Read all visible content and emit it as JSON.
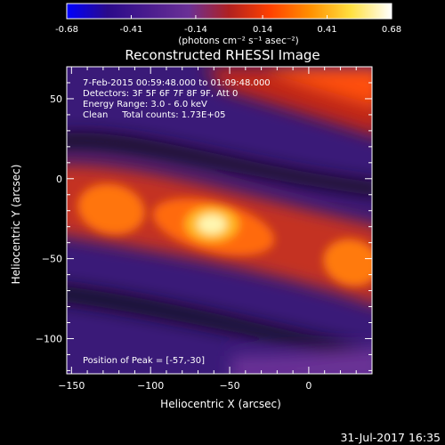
{
  "chart_data": {
    "type": "heatmap",
    "title": "Reconstructed RHESSI Image",
    "xlabel": "Heliocentric X (arcsec)",
    "ylabel": "Heliocentric Y (arcsec)",
    "xlim": [
      -153,
      40
    ],
    "ylim": [
      -122,
      70
    ],
    "x_ticks": [
      -150,
      -100,
      -50,
      0
    ],
    "y_ticks": [
      50,
      0,
      -50,
      -100
    ],
    "info_lines": [
      "7-Feb-2015 00:59:48.000 to 01:09:48.000",
      "Detectors: 3F 5F 6F 7F 8F 9F, Att 0",
      "Energy Range: 3.0 - 6.0 keV",
      "Clean     Total counts: 1.73E+05"
    ],
    "peak_label": "Position of Peak = [-57,-30]",
    "peak": {
      "x": -57,
      "y": -30
    },
    "colorbar": {
      "ticks": [
        "-0.68",
        "-0.41",
        "-0.14",
        "0.14",
        "0.41",
        "0.68"
      ],
      "range": [
        -0.68,
        0.68
      ],
      "unit_label": "(photons cm⁻² s⁻¹ asec⁻²)",
      "colors": [
        "#0000ff",
        "#2a0a8a",
        "#4a1c8e",
        "#6a3096",
        "#b02020",
        "#ff4000",
        "#ff9000",
        "#ffe040",
        "#ffffff"
      ]
    },
    "image_regions": [
      {
        "name": "central-band",
        "x": -55,
        "y": -30,
        "peak_value": 0.68
      },
      {
        "name": "left-lobe",
        "x": -125,
        "y": -18,
        "peak_value": 0.45
      },
      {
        "name": "right-lobe",
        "x": 35,
        "y": -52,
        "peak_value": 0.45
      },
      {
        "name": "upper-right-band",
        "x": 0,
        "y": 60,
        "peak_value": 0.35
      },
      {
        "name": "lower-right-band",
        "x": 10,
        "y": -110,
        "peak_value": 0.0
      }
    ]
  },
  "footer_timestamp": "31-Jul-2017 16:35"
}
